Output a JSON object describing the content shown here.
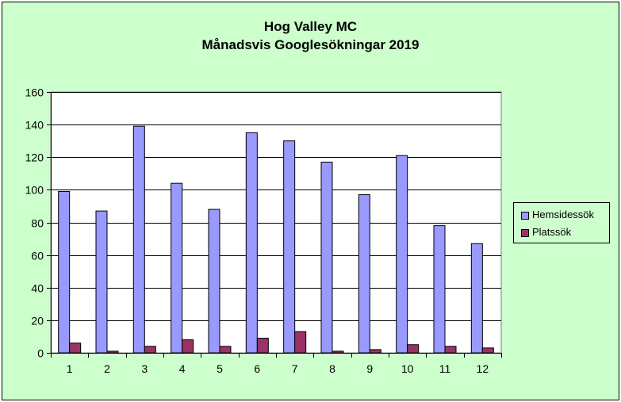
{
  "chart_data": {
    "type": "bar",
    "title_lines": [
      "Hog Valley MC",
      "Månadsvis Googlesökningar 2019"
    ],
    "categories": [
      "1",
      "2",
      "3",
      "4",
      "5",
      "6",
      "7",
      "8",
      "9",
      "10",
      "11",
      "12"
    ],
    "series": [
      {
        "name": "Hemsidessök",
        "color": "#9999ff",
        "values": [
          99,
          87,
          139,
          104,
          88,
          135,
          130,
          117,
          97,
          121,
          78,
          67
        ]
      },
      {
        "name": "Platssök",
        "color": "#993366",
        "values": [
          6,
          1,
          4,
          8,
          4,
          9,
          13,
          1,
          2,
          5,
          4,
          3
        ]
      }
    ],
    "ylim": [
      0,
      160
    ],
    "yticks": [
      0,
      20,
      40,
      60,
      80,
      100,
      120,
      140,
      160
    ],
    "grid": true,
    "legend": "right",
    "plot_background": "#ffffff",
    "chart_background": "#ccffcc"
  }
}
